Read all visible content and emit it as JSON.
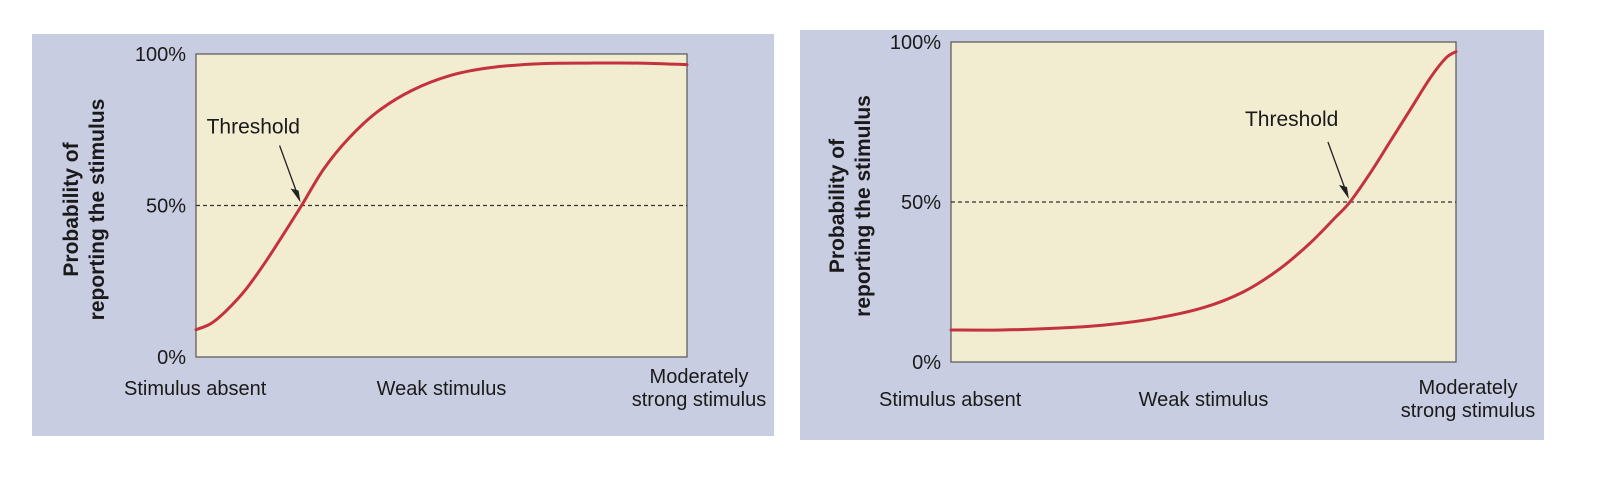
{
  "colors": {
    "panel_bg": "#c9cde2",
    "plot_bg": "#f2ecd1",
    "curve": "#c4323f",
    "axis": "#555555",
    "threshold_line": "#333333"
  },
  "chart_data": [
    {
      "type": "line",
      "ylabel_lines": [
        "Probability of",
        "reporting the stimulus"
      ],
      "yticks": [
        "0%",
        "50%",
        "100%"
      ],
      "ylim": [
        0,
        100
      ],
      "xlim": [
        0,
        1
      ],
      "xtick_labels": [
        {
          "lines": [
            "Stimulus absent"
          ],
          "x": 0.0
        },
        {
          "lines": [
            "Weak stimulus"
          ],
          "x": 0.5
        },
        {
          "lines": [
            "Moderately",
            "strong stimulus"
          ],
          "x": 1.0
        }
      ],
      "threshold": {
        "label": "Threshold",
        "x": 0.215,
        "y": 50
      },
      "series": [
        {
          "x": [
            0,
            0.03,
            0.06,
            0.1,
            0.14,
            0.18,
            0.215,
            0.26,
            0.31,
            0.37,
            0.44,
            0.52,
            0.6,
            0.7,
            0.8,
            0.9,
            1.0
          ],
          "y": [
            9,
            11,
            15,
            22,
            31,
            41,
            50,
            62,
            72,
            81,
            88,
            93,
            95.5,
            96.8,
            97,
            97,
            96.5
          ]
        }
      ]
    },
    {
      "type": "line",
      "ylabel_lines": [
        "Probability of",
        "reporting the stimulus"
      ],
      "yticks": [
        "0%",
        "50%",
        "100%"
      ],
      "ylim": [
        0,
        100
      ],
      "xlim": [
        0,
        1
      ],
      "xtick_labels": [
        {
          "lines": [
            "Stimulus absent"
          ],
          "x": 0.0
        },
        {
          "lines": [
            "Weak stimulus"
          ],
          "x": 0.5
        },
        {
          "lines": [
            "Moderately",
            "strong stimulus"
          ],
          "x": 1.0
        }
      ],
      "threshold": {
        "label": "Threshold",
        "x": 0.79,
        "y": 50
      },
      "series": [
        {
          "x": [
            0,
            0.1,
            0.2,
            0.3,
            0.4,
            0.5,
            0.58,
            0.65,
            0.71,
            0.76,
            0.79,
            0.83,
            0.87,
            0.91,
            0.95,
            0.98,
            1.0
          ],
          "y": [
            10,
            10,
            10.5,
            11.5,
            13.5,
            17,
            22,
            29,
            37,
            45,
            50,
            59,
            69,
            79,
            89,
            95,
            97
          ]
        }
      ]
    }
  ]
}
